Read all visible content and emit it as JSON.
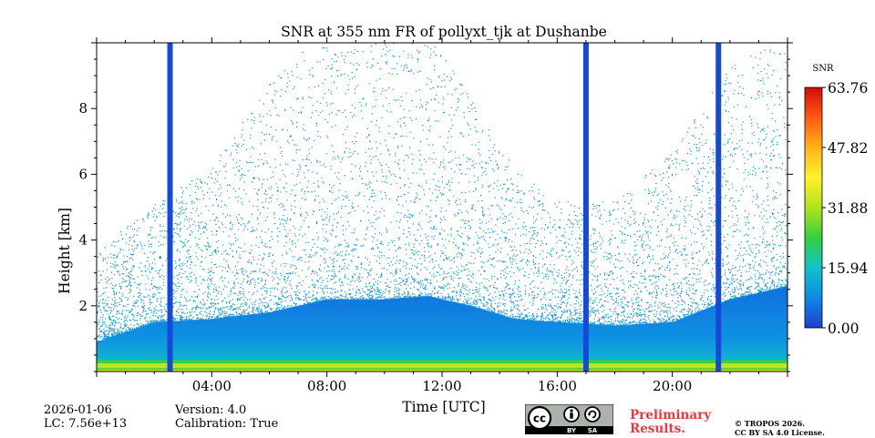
{
  "chart_data": {
    "type": "heatmap",
    "title": "SNR at 355 nm FR of pollyxt_tjk at Dushanbe",
    "xlabel": "Time [UTC]",
    "ylabel": "Height [km]",
    "x_range_hours": [
      0,
      24
    ],
    "y_range_km": [
      0,
      10
    ],
    "x_ticks": [
      {
        "hour": 4,
        "label": "04:00"
      },
      {
        "hour": 8,
        "label": "08:00"
      },
      {
        "hour": 12,
        "label": "12:00"
      },
      {
        "hour": 16,
        "label": "16:00"
      },
      {
        "hour": 20,
        "label": "20:00"
      }
    ],
    "y_ticks": [
      {
        "km": 2,
        "label": "2"
      },
      {
        "km": 4,
        "label": "4"
      },
      {
        "km": 6,
        "label": "6"
      },
      {
        "km": 8,
        "label": "8"
      }
    ],
    "colorbar": {
      "label": "SNR",
      "range": [
        0.0,
        63.76
      ],
      "ticks": [
        {
          "value": 0.0,
          "label": "0.00"
        },
        {
          "value": 15.94,
          "label": "15.94"
        },
        {
          "value": 31.88,
          "label": "31.88"
        },
        {
          "value": 47.82,
          "label": "47.82"
        },
        {
          "value": 63.76,
          "label": "63.76"
        }
      ],
      "colors": [
        "#1f3fd0",
        "#0c8ae6",
        "#12c2c8",
        "#34d03e",
        "#b2e21c",
        "#fff22a",
        "#ffb31a",
        "#ff5a12",
        "#d40a0a"
      ]
    },
    "missing_data_hours": [
      2.55,
      17.0,
      21.6
    ],
    "missing_data_color": "#1749d8",
    "signal_profile": {
      "description": "approximate top of dense signal layer (km) by hour",
      "hours": [
        0,
        2,
        4,
        6,
        8,
        10,
        11.5,
        13,
        14.5,
        16,
        18,
        20,
        22,
        24
      ],
      "dense_top_km": [
        0.9,
        1.5,
        1.6,
        1.8,
        2.2,
        2.2,
        2.3,
        2.0,
        1.6,
        1.5,
        1.4,
        1.5,
        2.2,
        2.6
      ],
      "noise_top_km": [
        3.5,
        5.0,
        6.0,
        8.5,
        10.0,
        10.0,
        10.0,
        8.0,
        6.0,
        5.0,
        5.0,
        6.5,
        9.0,
        10.0
      ]
    }
  },
  "footer": {
    "date": "2026-01-06",
    "lc": "LC: 7.56e+13",
    "version": "Version: 4.0",
    "calibration": "Calibration: True",
    "preliminary_line1": "Preliminary",
    "preliminary_line2": "Results.",
    "copyright_line1": "© TROPOS 2026.",
    "copyright_line2": "CC BY SA 4.0 License.",
    "cc_badge_text": "cc",
    "cc_by": "BY",
    "cc_sa": "SA"
  }
}
